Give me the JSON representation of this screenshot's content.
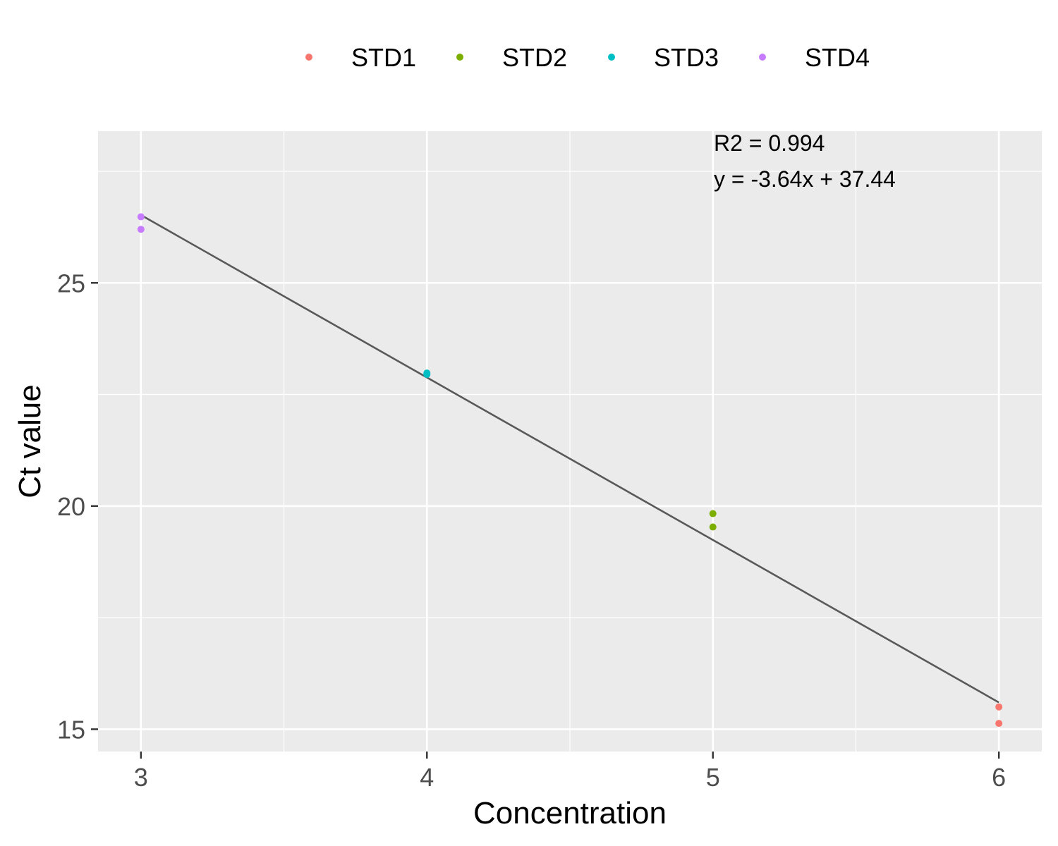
{
  "chart_data": {
    "type": "scatter",
    "title": "",
    "xlabel": "Concentration",
    "ylabel": "Ct value",
    "xlim": [
      2.85,
      6.15
    ],
    "ylim": [
      14.5,
      28.4
    ],
    "x_ticks": [
      3,
      4,
      5,
      6
    ],
    "y_ticks": [
      15,
      20,
      25
    ],
    "grid": true,
    "legend_position": "top",
    "series": [
      {
        "name": "STD1",
        "color": "#F8766D",
        "points": [
          {
            "x": 6,
            "y": 15.5
          },
          {
            "x": 6,
            "y": 15.13
          }
        ]
      },
      {
        "name": "STD2",
        "color": "#7CAE00",
        "points": [
          {
            "x": 5,
            "y": 19.83
          },
          {
            "x": 5,
            "y": 19.53
          }
        ]
      },
      {
        "name": "STD3",
        "color": "#00BFC4",
        "points": [
          {
            "x": 4,
            "y": 22.98
          },
          {
            "x": 4,
            "y": 22.95
          }
        ]
      },
      {
        "name": "STD4",
        "color": "#C77CFF",
        "points": [
          {
            "x": 3,
            "y": 26.48
          },
          {
            "x": 3,
            "y": 26.2
          }
        ]
      }
    ],
    "regression": {
      "slope": -3.64,
      "intercept": 37.44,
      "x_range": [
        3,
        6
      ],
      "color": "#595959"
    },
    "annotations": [
      "R2 = 0.994",
      "y = -3.64x + 37.44"
    ]
  }
}
